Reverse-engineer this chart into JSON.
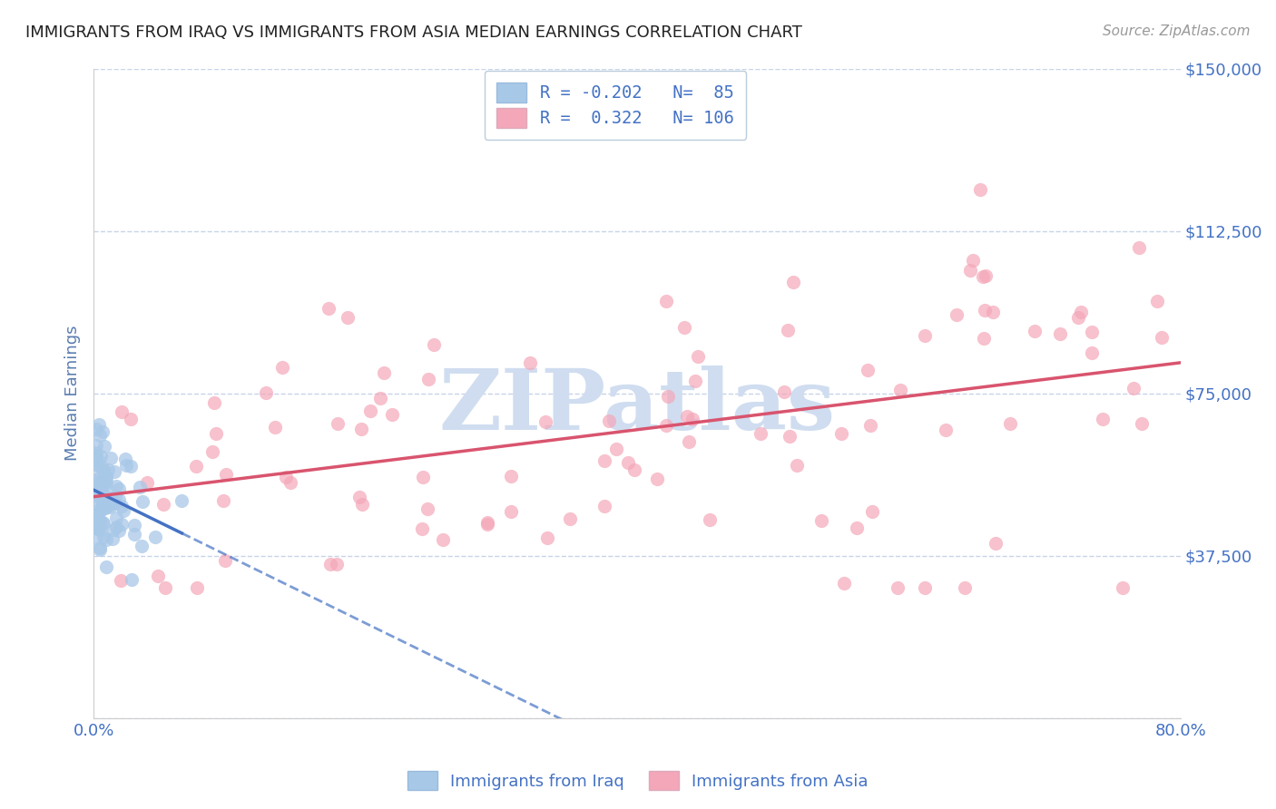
{
  "title": "IMMIGRANTS FROM IRAQ VS IMMIGRANTS FROM ASIA MEDIAN EARNINGS CORRELATION CHART",
  "source": "Source: ZipAtlas.com",
  "ylabel": "Median Earnings",
  "xlim": [
    0.0,
    0.8
  ],
  "ylim": [
    0,
    150000
  ],
  "yticks": [
    0,
    37500,
    75000,
    112500,
    150000
  ],
  "ytick_labels": [
    "",
    "$37,500",
    "$75,000",
    "$112,500",
    "$150,000"
  ],
  "xtick_positions": [
    0.0,
    0.2,
    0.4,
    0.6,
    0.8
  ],
  "xtick_labels": [
    "0.0%",
    "",
    "",
    "",
    "80.0%"
  ],
  "series": [
    {
      "name": "Immigrants from Iraq",
      "R": -0.202,
      "N": 85,
      "marker_color": "#a8c8e8",
      "trend_color": "#4472C4",
      "trend_linestyle": "-"
    },
    {
      "name": "Immigrants from Asia",
      "R": 0.322,
      "N": 106,
      "marker_color": "#f4a7b9",
      "trend_color": "#d9546e",
      "trend_linestyle": "-"
    }
  ],
  "background_color": "#ffffff",
  "grid_color": "#c8d4e8",
  "axis_label_color": "#5b7db1",
  "tick_label_color": "#4472C4",
  "watermark_text": "ZIPatlas",
  "watermark_color": "#d0ddf0",
  "iraq_seed": 77,
  "asia_seed": 99
}
